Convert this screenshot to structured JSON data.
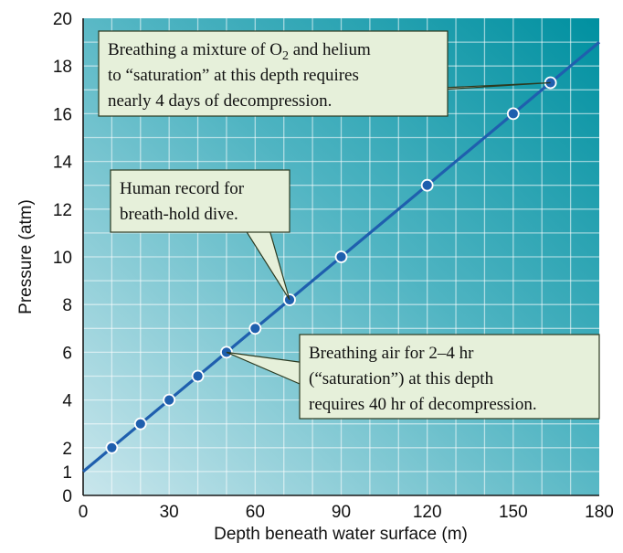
{
  "chart_data": {
    "type": "line",
    "xlabel": "Depth beneath water surface (m)",
    "ylabel": "Pressure (atm)",
    "xlim": [
      0,
      180
    ],
    "ylim": [
      0,
      20
    ],
    "x_ticks": [
      0,
      30,
      60,
      90,
      120,
      150,
      180
    ],
    "y_ticks": [
      0,
      1,
      2,
      4,
      6,
      8,
      10,
      12,
      14,
      16,
      18,
      20
    ],
    "grid": true,
    "line": {
      "x": [
        0,
        180
      ],
      "y": [
        1,
        19
      ]
    },
    "points": [
      {
        "x": 10,
        "y": 2
      },
      {
        "x": 20,
        "y": 3
      },
      {
        "x": 30,
        "y": 4
      },
      {
        "x": 40,
        "y": 5
      },
      {
        "x": 50,
        "y": 6
      },
      {
        "x": 60,
        "y": 7
      },
      {
        "x": 72,
        "y": 8.2
      },
      {
        "x": 90,
        "y": 10
      },
      {
        "x": 120,
        "y": 13
      },
      {
        "x": 150,
        "y": 16
      },
      {
        "x": 163,
        "y": 17.3
      }
    ],
    "annotations": [
      {
        "id": "helium",
        "lines": [
          "Breathing a mixture of O",
          " and helium",
          "to “saturation” at this depth requires",
          "nearly 4 days of decompression."
        ],
        "subscript": "2",
        "target": {
          "x": 163,
          "y": 17.3
        }
      },
      {
        "id": "breath-hold",
        "lines": [
          "Human record for",
          "breath-hold dive."
        ],
        "target": {
          "x": 72,
          "y": 8.2
        }
      },
      {
        "id": "air",
        "lines": [
          "Breathing air for 2–4 hr",
          "(“saturation”) at this depth",
          "requires 40 hr of decompression."
        ],
        "target": {
          "x": 50,
          "y": 6
        }
      }
    ],
    "colors": {
      "line": "#1f5fae",
      "marker_fill": "#1f5fae",
      "marker_stroke": "#ffffff",
      "background_light": "#c9e6ec",
      "background_dark": "#0090a0",
      "callout_fill": "#e6f0da"
    }
  }
}
